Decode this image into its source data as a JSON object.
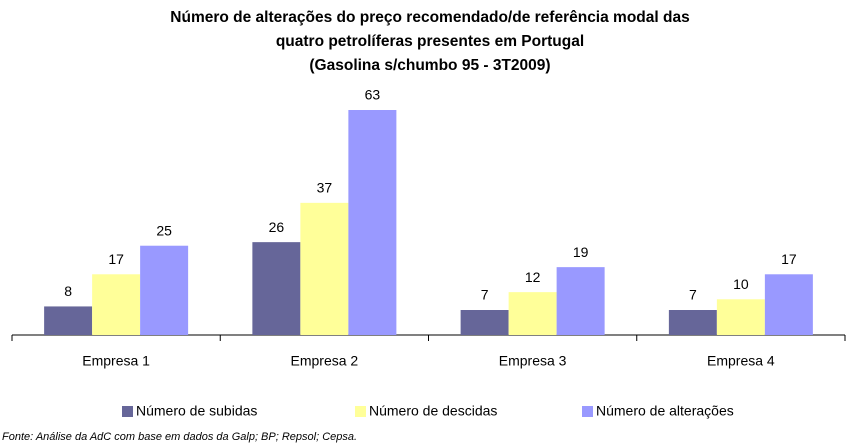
{
  "chart_data": {
    "type": "bar",
    "title": [
      "Número de alterações do preço recomendado/de referência modal das",
      "quatro petrolíferas presentes em Portugal",
      "(Gasolina s/chumbo 95 - 3T2009)"
    ],
    "categories": [
      "Empresa 1",
      "Empresa 2",
      "Empresa 3",
      "Empresa 4"
    ],
    "series": [
      {
        "name": "Número de subidas",
        "color": "#666699",
        "values": [
          8,
          26,
          7,
          7
        ]
      },
      {
        "name": "Número de descidas",
        "color": "#ffff99",
        "values": [
          17,
          37,
          12,
          10
        ]
      },
      {
        "name": "Número de alterações",
        "color": "#9999ff",
        "values": [
          25,
          63,
          19,
          17
        ]
      }
    ],
    "footnote": "Fonte: Análise da AdC com base em dados da Galp; BP; Repsol; Cepsa."
  }
}
